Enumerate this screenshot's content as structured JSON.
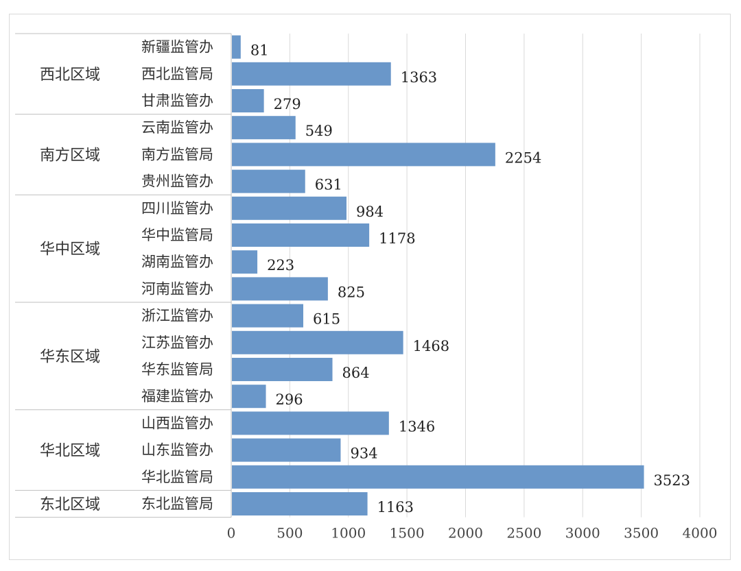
{
  "chart_data": {
    "type": "bar",
    "orientation": "horizontal",
    "title": "",
    "xlabel": "",
    "ylabel": "",
    "xlim": [
      0,
      4000
    ],
    "x_ticks": [
      0,
      500,
      1000,
      1500,
      2000,
      2500,
      3000,
      3500,
      4000
    ],
    "grid": true,
    "legend": "none",
    "bar_color": "#6a97c9",
    "groups": [
      {
        "name": "西北区域",
        "categories": [
          "新疆监管办",
          "西北监管局",
          "甘肃监管办"
        ],
        "values": [
          81,
          1363,
          279
        ]
      },
      {
        "name": "南方区域",
        "categories": [
          "云南监管办",
          "南方监管局",
          "贵州监管办"
        ],
        "values": [
          549,
          2254,
          631
        ]
      },
      {
        "name": "华中区域",
        "categories": [
          "四川监管办",
          "华中监管局",
          "湖南监管办",
          "河南监管办"
        ],
        "values": [
          984,
          1178,
          223,
          825
        ]
      },
      {
        "name": "华东区域",
        "categories": [
          "浙江监管办",
          "江苏监管办",
          "华东监管局",
          "福建监管办"
        ],
        "values": [
          615,
          1468,
          864,
          296
        ]
      },
      {
        "name": "华北区域",
        "categories": [
          "山西监管办",
          "山东监管办",
          "华北监管局"
        ],
        "values": [
          1346,
          934,
          3523
        ]
      },
      {
        "name": "东北区域",
        "categories": [
          "东北监管局"
        ],
        "values": [
          1163
        ]
      }
    ]
  }
}
